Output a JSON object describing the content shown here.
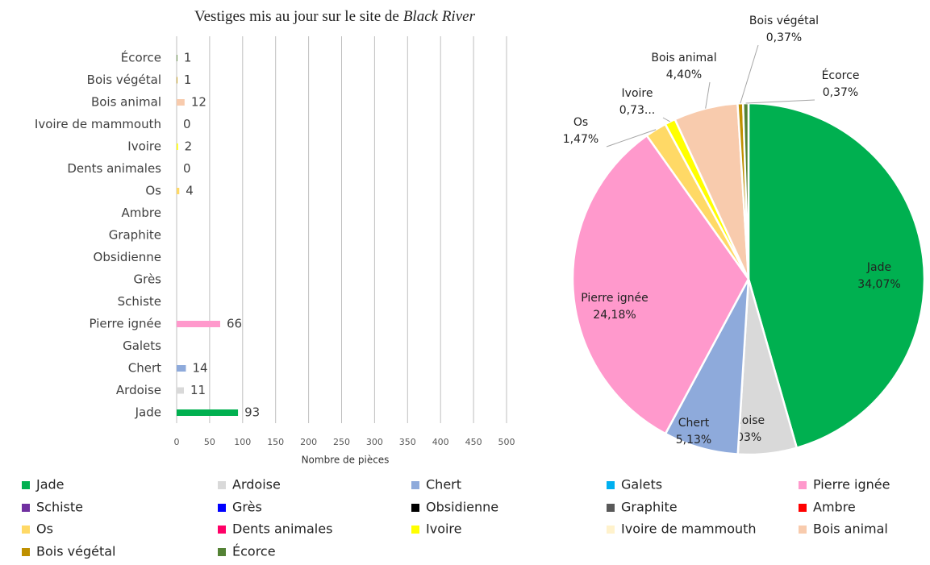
{
  "chart_data": [
    {
      "type": "bar",
      "title": [
        "Vestiges mis au jour sur le site de",
        "Black River"
      ],
      "x_label": "Nombre de pièces",
      "categories": [
        "Jade",
        "Ardoise",
        "Chert",
        "Galets",
        "Pierre ignée",
        "Schiste",
        "Grès",
        "Obsidienne",
        "Graphite",
        "Ambre",
        "Os",
        "Dents animales",
        "Ivoire",
        "Ivoire de mammouth",
        "Bois animal",
        "Bois végétal",
        "Écorce"
      ],
      "values": [
        93,
        11,
        14,
        null,
        66,
        null,
        null,
        null,
        null,
        null,
        4,
        0,
        2,
        0,
        12,
        1,
        1
      ],
      "colors": [
        "#00b050",
        "#d9d9d9",
        "#8eaadb",
        "#00b0f0",
        "#ff99cc",
        "#7030a0",
        "#0000ff",
        "#000000",
        "#595959",
        "#ff0000",
        "#ffd966",
        "#ff0066",
        "#ffff00",
        "#fff2cc",
        "#f8cbad",
        "#bf9000",
        "#548235"
      ],
      "xlim": [
        0,
        500
      ],
      "xticks": [
        0,
        50,
        100,
        150,
        200,
        250,
        300,
        350,
        400,
        450,
        500
      ],
      "grid": true
    },
    {
      "type": "pie",
      "categories": [
        "Jade",
        "Ardoise",
        "Chert",
        "Pierre ignée",
        "Os",
        "Ivoire",
        "Bois animal",
        "Bois végétal",
        "Écorce"
      ],
      "values": [
        34.07,
        4.03,
        5.13,
        24.18,
        1.47,
        0.73,
        4.4,
        0.37,
        0.37
      ],
      "value_labels": [
        "34,07%",
        "4,03%",
        "5,13%",
        "24,18%",
        "1,47%",
        "0,73...",
        "4,40%",
        "0,37%",
        "0,37%"
      ],
      "colors": [
        "#00b050",
        "#d9d9d9",
        "#8eaadb",
        "#ff99cc",
        "#ffd966",
        "#ffff00",
        "#f8cbad",
        "#bf9000",
        "#548235"
      ]
    }
  ]
}
